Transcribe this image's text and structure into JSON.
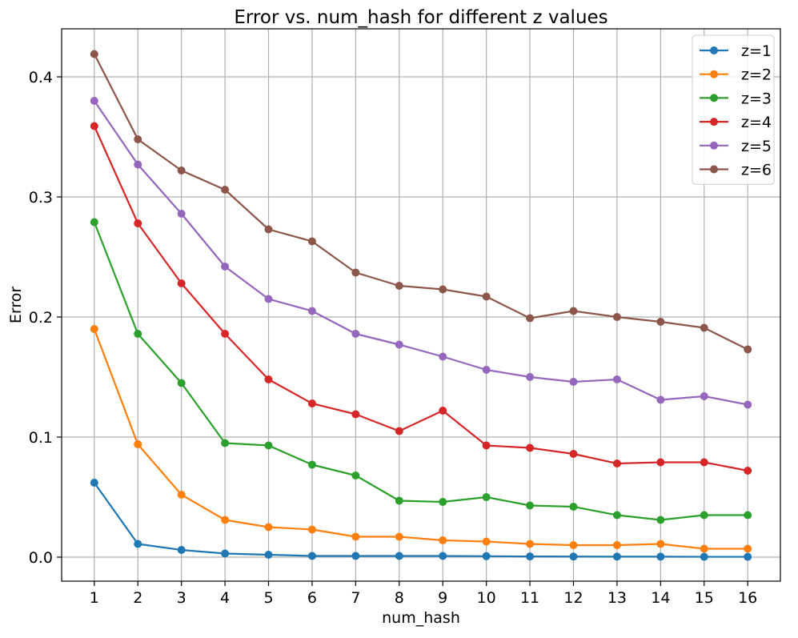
{
  "chart_data": {
    "type": "line",
    "title": "Error vs. num_hash for different z values",
    "xlabel": "num_hash",
    "ylabel": "Error",
    "x": [
      1,
      2,
      3,
      4,
      5,
      6,
      7,
      8,
      9,
      10,
      11,
      12,
      13,
      14,
      15,
      16
    ],
    "xticks": [
      "1",
      "2",
      "3",
      "4",
      "5",
      "6",
      "7",
      "8",
      "9",
      "10",
      "11",
      "12",
      "13",
      "14",
      "15",
      "16"
    ],
    "yticks": [
      "0.0",
      "0.1",
      "0.2",
      "0.3",
      "0.4"
    ],
    "ylim": [
      -0.02,
      0.44
    ],
    "xlim": [
      0.25,
      16.75
    ],
    "grid": true,
    "legend_position": "top-right",
    "series": [
      {
        "name": "z=1",
        "color": "#1f77b4",
        "values": [
          0.062,
          0.011,
          0.006,
          0.003,
          0.002,
          0.001,
          0.001,
          0.001,
          0.001,
          0.0008,
          0.0006,
          0.0005,
          0.0004,
          0.0004,
          0.0003,
          0.0003
        ]
      },
      {
        "name": "z=2",
        "color": "#ff7f0e",
        "values": [
          0.19,
          0.094,
          0.052,
          0.031,
          0.025,
          0.023,
          0.017,
          0.017,
          0.014,
          0.013,
          0.011,
          0.01,
          0.01,
          0.011,
          0.007,
          0.007
        ]
      },
      {
        "name": "z=3",
        "color": "#2ca02c",
        "values": [
          0.279,
          0.186,
          0.145,
          0.095,
          0.093,
          0.077,
          0.068,
          0.047,
          0.046,
          0.05,
          0.043,
          0.042,
          0.035,
          0.031,
          0.035,
          0.035
        ]
      },
      {
        "name": "z=4",
        "color": "#d62728",
        "values": [
          0.359,
          0.278,
          0.228,
          0.186,
          0.148,
          0.128,
          0.119,
          0.105,
          0.122,
          0.093,
          0.091,
          0.086,
          0.078,
          0.079,
          0.079,
          0.072
        ]
      },
      {
        "name": "z=5",
        "color": "#9467bd",
        "values": [
          0.38,
          0.327,
          0.286,
          0.242,
          0.215,
          0.205,
          0.186,
          0.177,
          0.167,
          0.156,
          0.15,
          0.146,
          0.148,
          0.131,
          0.134,
          0.127
        ]
      },
      {
        "name": "z=6",
        "color": "#8c564b",
        "values": [
          0.419,
          0.348,
          0.322,
          0.306,
          0.273,
          0.263,
          0.237,
          0.226,
          0.223,
          0.217,
          0.199,
          0.205,
          0.2,
          0.196,
          0.191,
          0.173
        ]
      }
    ]
  }
}
